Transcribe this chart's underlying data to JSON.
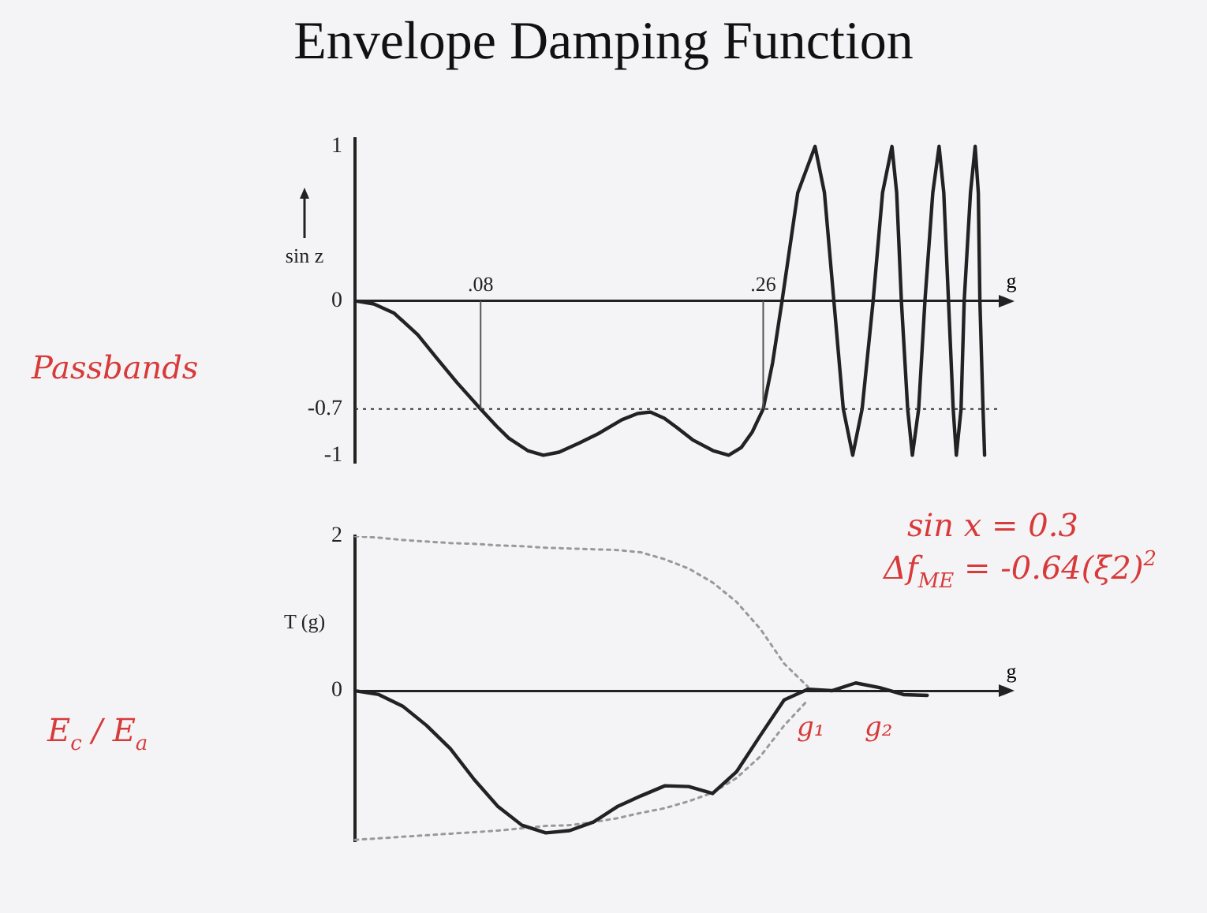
{
  "chart_data": [
    {
      "type": "line",
      "title": "Envelope Damping Function",
      "ylabel": "sin z",
      "xlabel": "g",
      "xlim": [
        0,
        0.41
      ],
      "xticks": [
        {
          "value": 0.08,
          "label": ".08"
        },
        {
          "value": 0.26,
          "label": ".26"
        }
      ],
      "ylim": [
        -1.05,
        1.05
      ],
      "yticks": [
        1,
        0,
        -0.7,
        -1
      ],
      "grid": false,
      "legend": false,
      "marker": "none",
      "series": [
        {
          "color": "#222222",
          "line_style": "solid",
          "x": [
            0,
            0.012,
            0.025,
            0.04,
            0.052,
            0.065,
            0.08,
            0.09,
            0.098,
            0.11,
            0.12,
            0.13,
            0.143,
            0.155,
            0.17,
            0.18,
            0.188,
            0.197,
            0.205,
            0.215,
            0.228,
            0.238,
            0.246,
            0.253,
            0.26,
            0.266,
            0.272,
            0.282,
            0.293,
            0.299,
            0.305,
            0.311,
            0.317,
            0.323,
            0.33,
            0.336,
            0.342,
            0.345,
            0.348,
            0.352,
            0.355,
            0.359,
            0.363,
            0.368,
            0.372,
            0.375,
            0.378,
            0.381,
            0.383,
            0.386,
            0.388,
            0.392,
            0.395,
            0.397,
            0.398,
            0.4,
            0.401
          ],
          "values": [
            0,
            -0.02,
            -0.08,
            -0.22,
            -0.37,
            -0.53,
            -0.7,
            -0.81,
            -0.89,
            -0.97,
            -1,
            -0.98,
            -0.92,
            -0.86,
            -0.77,
            -0.73,
            -0.72,
            -0.76,
            -0.82,
            -0.9,
            -0.97,
            -1,
            -0.95,
            -0.85,
            -0.7,
            -0.4,
            0,
            0.7,
            1,
            0.7,
            0,
            -0.7,
            -1,
            -0.7,
            0,
            0.7,
            1,
            0.7,
            0,
            -0.7,
            -1,
            -0.7,
            0,
            0.7,
            1,
            0.7,
            0,
            -0.7,
            -1,
            -0.7,
            0,
            0.7,
            1,
            0.7,
            0,
            -0.7,
            -1
          ]
        }
      ],
      "ref_lines": [
        {
          "axis": "y",
          "value": -0.7,
          "label": null,
          "color": "#333333",
          "line_style": "dotted"
        },
        {
          "axis": "x",
          "value": 0.08,
          "label": null,
          "color": "#555555",
          "line_style": "solid"
        },
        {
          "axis": "x",
          "value": 0.26,
          "label": null,
          "color": "#555555",
          "line_style": "solid"
        }
      ],
      "annotations": [
        "Passbands"
      ]
    },
    {
      "type": "line",
      "ylabel": "T (g)",
      "xlabel": "g",
      "categories": [
        null,
        null,
        null,
        null,
        null,
        null,
        null,
        null,
        null,
        null,
        null,
        null,
        null,
        null,
        null,
        null,
        null,
        null,
        null,
        null,
        null,
        null,
        null,
        null,
        null,
        null,
        null,
        null
      ],
      "ylim": [
        -1.95,
        2
      ],
      "yticks": [
        2,
        0
      ],
      "tick_labels": "y",
      "legend": false,
      "marker": "none",
      "series": [
        {
          "color": "#222222",
          "line_style": "solid",
          "values": [
            0,
            -0.05,
            -0.2,
            -0.45,
            -0.75,
            -1.15,
            -1.5,
            -1.74,
            -1.84,
            -1.81,
            -1.7,
            -1.5,
            -1.36,
            -1.23,
            -1.24,
            -1.33,
            -1.05,
            -0.58,
            -0.12,
            0.02,
            0,
            0.1,
            0.04,
            -0.05,
            -0.06,
            null,
            null,
            null
          ]
        },
        {
          "color": "#999999",
          "line_style": "dotted",
          "values": [
            2,
            1.98,
            1.95,
            1.93,
            1.91,
            1.9,
            1.88,
            1.87,
            1.85,
            1.84,
            1.83,
            1.82,
            1.79,
            1.7,
            1.58,
            1.4,
            1.15,
            0.8,
            0.35,
            0.05,
            null,
            null,
            null,
            null,
            null,
            null,
            null,
            null
          ]
        },
        {
          "color": "#999999",
          "line_style": "dotted",
          "values": [
            -1.93,
            -1.91,
            -1.89,
            -1.87,
            -1.85,
            -1.83,
            -1.81,
            -1.78,
            -1.75,
            -1.74,
            -1.7,
            -1.65,
            -1.58,
            -1.52,
            -1.43,
            -1.32,
            -1.13,
            -0.85,
            -0.45,
            -0.12,
            null,
            null,
            null,
            null,
            null,
            null,
            null,
            null
          ]
        }
      ],
      "annotations": [
        "sin x = 0.3",
        "Δf$_{ME}$ = -0.64(ξ2)$^{2}$",
        "E$_{c}$ / E$_{a}$",
        "g₁",
        "g₂"
      ]
    }
  ]
}
